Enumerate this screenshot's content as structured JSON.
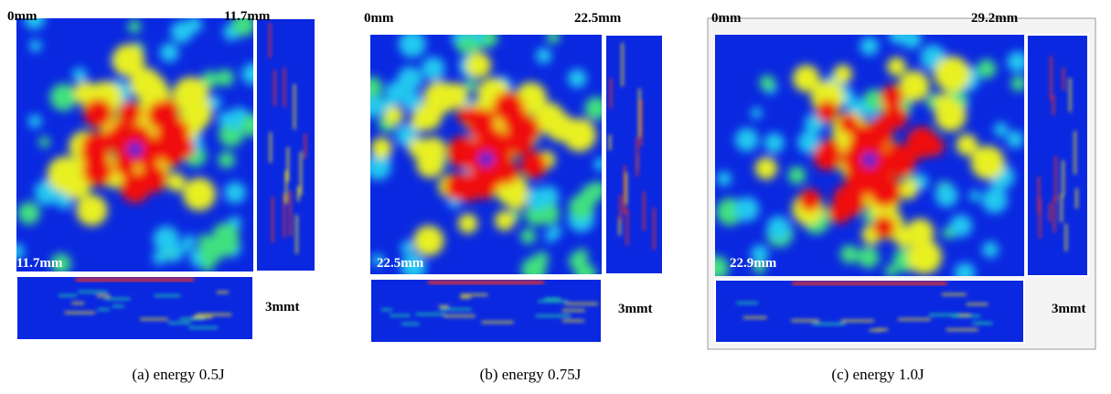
{
  "panels": [
    {
      "top_left": "0mm",
      "top_right": "11.7mm",
      "bottom_left": "11.7mm",
      "thickness": "3mmt",
      "caption": "(a) energy 0.5J"
    },
    {
      "top_left": "0mm",
      "top_right": "22.5mm",
      "bottom_left": "22.5mm",
      "thickness": "3mmt",
      "caption": "(b) energy 0.75J"
    },
    {
      "top_left": "0mm",
      "top_right": "29.2mm",
      "bottom_left": "22.9mm",
      "thickness": "3mmt",
      "caption": "(c) energy 1.0J"
    }
  ]
}
